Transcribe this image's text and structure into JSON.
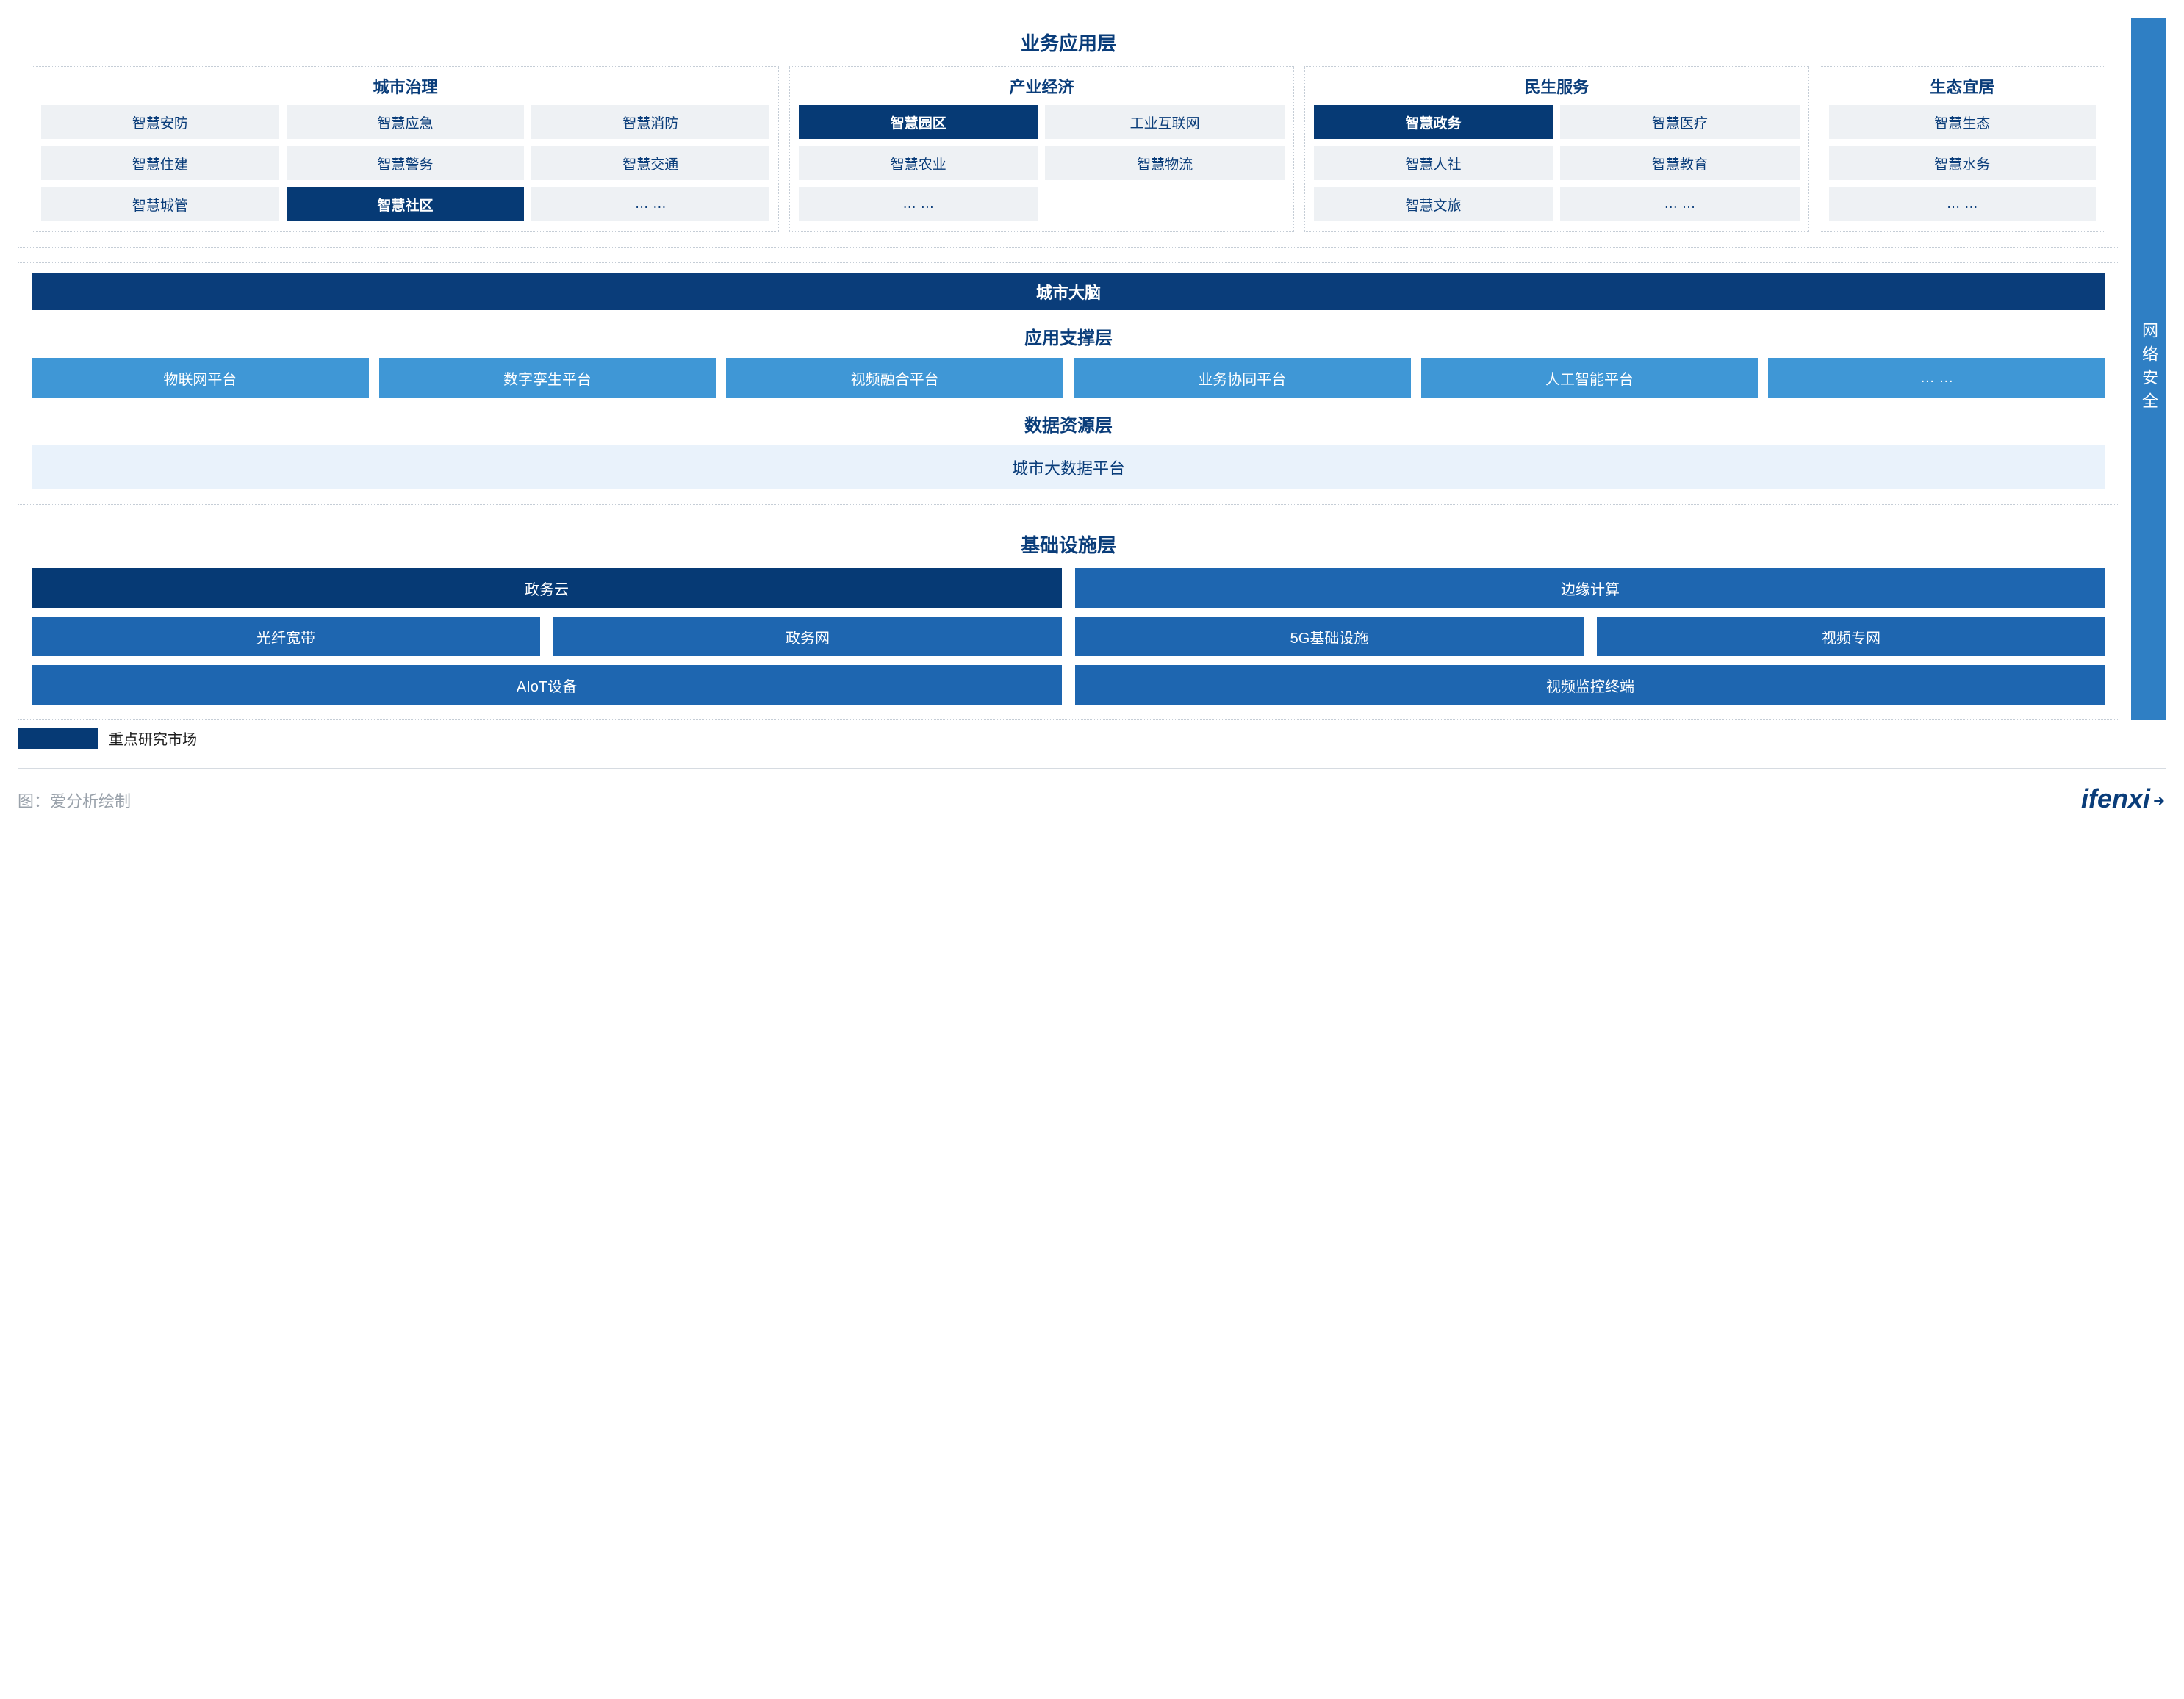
{
  "colors": {
    "title": "#0a3d7a",
    "subtitle": "#0a3d7a",
    "dark_navy_bg": "#063a75",
    "dark_navy_fg": "#ffffff",
    "navy_bg": "#0a3d7a",
    "navy_fg": "#ffffff",
    "blue_bg": "#1e66b0",
    "blue_fg": "#ffffff",
    "sky_bg": "#3f97d6",
    "sky_fg": "#ffffff",
    "pale_bg": "#e9f2fb",
    "pale_fg": "#0a3d7a",
    "chip_bg": "#eef1f4",
    "chip_fg": "#0a3d7a",
    "chip_hl_bg": "#063a75",
    "chip_hl_fg": "#ffffff",
    "side_bg": "#2f7fc4",
    "brand": "#0a3d7a",
    "footer_text": "#9aa2ab",
    "black": "#1c1c1c"
  },
  "layer_app": {
    "title": "业务应用层",
    "groups": [
      {
        "title": "城市治理",
        "cols": 3,
        "flex": 3,
        "items": [
          {
            "label": "智慧安防",
            "hl": false
          },
          {
            "label": "智慧应急",
            "hl": false
          },
          {
            "label": "智慧消防",
            "hl": false
          },
          {
            "label": "智慧住建",
            "hl": false
          },
          {
            "label": "智慧警务",
            "hl": false
          },
          {
            "label": "智慧交通",
            "hl": false
          },
          {
            "label": "智慧城管",
            "hl": false
          },
          {
            "label": "智慧社区",
            "hl": true
          },
          {
            "label": "… …",
            "hl": false
          }
        ]
      },
      {
        "title": "产业经济",
        "cols": 2,
        "flex": 2,
        "items": [
          {
            "label": "智慧园区",
            "hl": true
          },
          {
            "label": "工业互联网",
            "hl": false
          },
          {
            "label": "智慧农业",
            "hl": false
          },
          {
            "label": "智慧物流",
            "hl": false
          },
          {
            "label": "… …",
            "hl": false
          }
        ]
      },
      {
        "title": "民生服务",
        "cols": 2,
        "flex": 2,
        "items": [
          {
            "label": "智慧政务",
            "hl": true
          },
          {
            "label": "智慧医疗",
            "hl": false
          },
          {
            "label": "智慧人社",
            "hl": false
          },
          {
            "label": "智慧教育",
            "hl": false
          },
          {
            "label": "智慧文旅",
            "hl": false
          },
          {
            "label": "… …",
            "hl": false
          }
        ]
      },
      {
        "title": "生态宜居",
        "cols": 1,
        "flex": 1.1,
        "items": [
          {
            "label": "智慧生态",
            "hl": false
          },
          {
            "label": "智慧水务",
            "hl": false
          },
          {
            "label": "… …",
            "hl": false
          }
        ]
      }
    ]
  },
  "brain_bar": {
    "label": "城市大脑"
  },
  "layer_support": {
    "title": "应用支撑层",
    "items": [
      "物联网平台",
      "数字孪生平台",
      "视频融合平台",
      "业务协同平台",
      "人工智能平台",
      "… …"
    ]
  },
  "layer_data": {
    "title": "数据资源层",
    "item": "城市大数据平台"
  },
  "layer_infra": {
    "title": "基础设施层",
    "rows": [
      [
        {
          "label": "政务云",
          "span": 2,
          "style": "dark"
        },
        {
          "label": "边缘计算",
          "span": 2,
          "style": "blue"
        }
      ],
      [
        {
          "label": "光纤宽带",
          "span": 1,
          "style": "blue"
        },
        {
          "label": "政务网",
          "span": 1,
          "style": "blue"
        },
        {
          "label": "5G基础设施",
          "span": 1,
          "style": "blue"
        },
        {
          "label": "视频专网",
          "span": 1,
          "style": "blue"
        }
      ],
      [
        {
          "label": "AIoT设备",
          "span": 2,
          "style": "blue"
        },
        {
          "label": "视频监控终端",
          "span": 2,
          "style": "blue"
        }
      ]
    ]
  },
  "side_label": "网络安全",
  "legend": {
    "label": "重点研究市场"
  },
  "footer": {
    "caption": "图：爱分析绘制",
    "brand": "ifenxi"
  }
}
